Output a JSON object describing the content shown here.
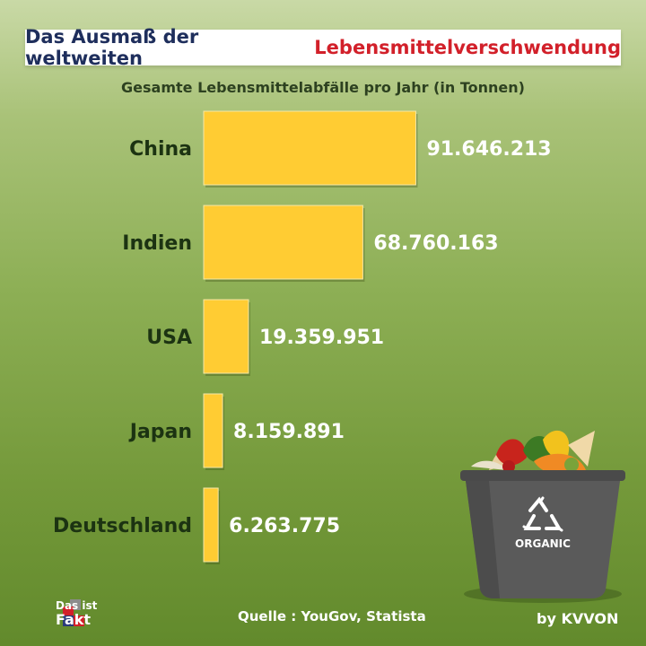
{
  "header": {
    "title_part1": "Das Ausmaß der weltweiten",
    "title_part2": "Lebensmittelverschwendung",
    "subtitle": "Gesamte Lebensmittelabfälle pro Jahr (in Tonnen)"
  },
  "chart_data": {
    "type": "bar",
    "orientation": "horizontal",
    "title": "Das Ausmaß der weltweiten Lebensmittelverschwendung",
    "subtitle": "Gesamte Lebensmittelabfälle pro Jahr (in Tonnen)",
    "categories": [
      "China",
      "Indien",
      "USA",
      "Japan",
      "Deutschland"
    ],
    "values": [
      91646213,
      68760163,
      19359951,
      8159891,
      6263775
    ],
    "value_labels": [
      "91.646.213",
      "68.760.163",
      "19.359.951",
      "8.159.891",
      "6.263.775"
    ],
    "xlim": [
      0,
      100000000
    ],
    "grid": false,
    "legend": "none",
    "bar_color": "#ffcc33"
  },
  "footer": {
    "source": "Quelle : YouGov, Statista",
    "logo_line1": "Das ist",
    "logo_line2": "Fakt",
    "credit": "by KVVON",
    "bin_label": "ORGANIC"
  },
  "colors": {
    "title_navy": "#1e2e5c",
    "title_red": "#d2202a",
    "bar_yellow": "#ffcc33",
    "label_dark_green": "#1c3312"
  },
  "icons": [
    "recycle-icon",
    "organic-waste-bin",
    "das-ist-fakt-logo"
  ]
}
